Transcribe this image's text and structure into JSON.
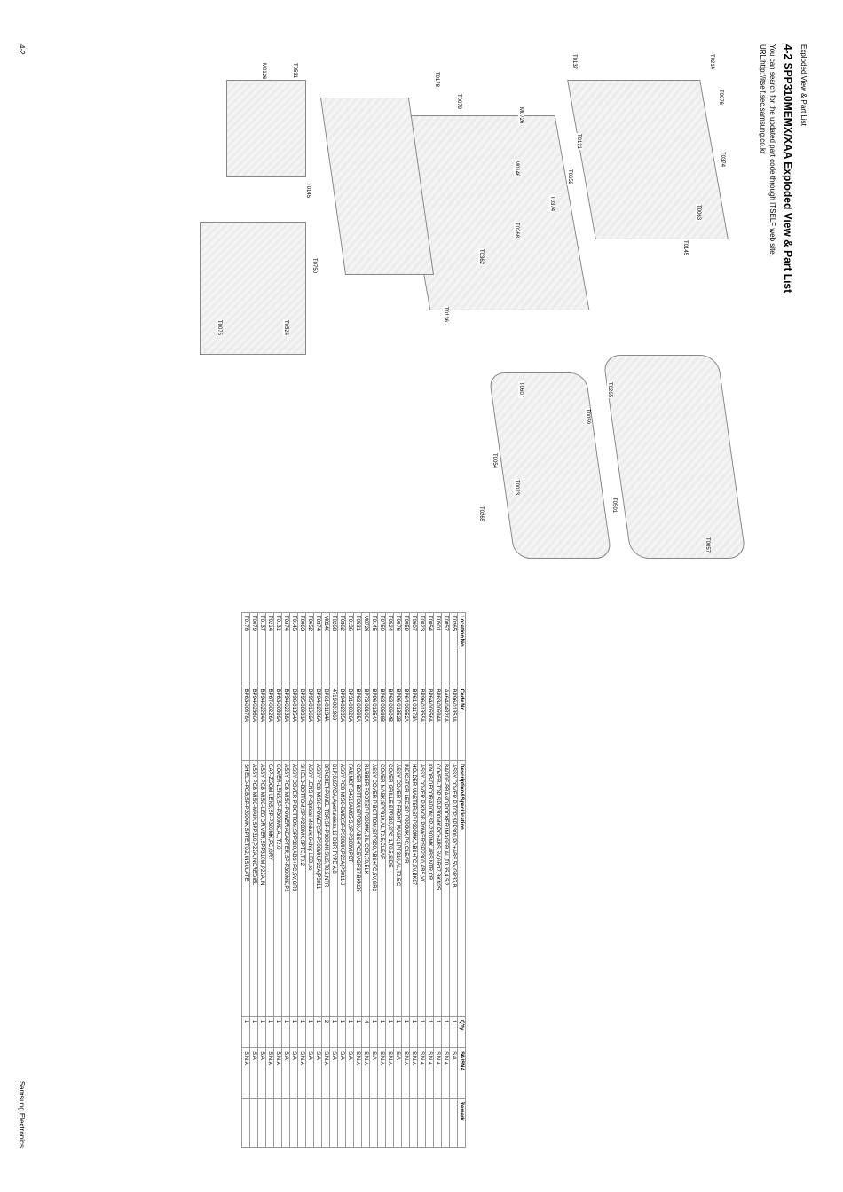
{
  "header_small": "Exploded View & Part List",
  "title": "4-2 SPP310MEMX/XAA Exploded View & Part List",
  "sub1": "You can search for the updated part code through ITSELF web site.",
  "sub2": "URL:http://itself.sec.samsung.co.kr",
  "footer_left": "4-2",
  "footer_right": "Samsung Electronics",
  "callouts": {
    "c1": "T0214",
    "c2": "T0076",
    "c3": "T0374",
    "c4": "T0063",
    "c5": "T0145",
    "c6": "T0531",
    "c7": "M0126",
    "c8": "T0145",
    "c9": "T0750",
    "c10": "T0524",
    "c11": "T0076",
    "c12": "T0137",
    "c13": "T0131",
    "c14": "T0652",
    "c15": "T0374",
    "c16": "T0268",
    "c17": "T0362",
    "c18": "T0136",
    "c19": "M0146",
    "c20": "T0079",
    "c21": "T0178",
    "c22": "T0265",
    "c23": "T0607",
    "c24": "T0059",
    "c25": "T0057",
    "c26": "T0054",
    "c27": "T0023",
    "c28": "T0501",
    "c29": "T0265",
    "c30": "M0726"
  },
  "table": {
    "headers": [
      "Location No.",
      "Code No.",
      "Description&Specification",
      "Q'ty",
      "SA/SNA",
      "Remark"
    ],
    "rows": [
      [
        "T0265",
        "BP96-01351A",
        "ASSY COVER P-TOP;SPP300,PC+ABS,5V,GR37,B",
        "1",
        "S.A",
        ""
      ],
      [
        "T0057",
        "AA64-04320A",
        "BADGE-BRAND;POCKER IMAGER,AL,T0.65,4.5,2",
        "1",
        "S.N.A",
        ""
      ],
      [
        "T0501",
        "BP63-00594A",
        "COVER-TOP;SP-P300MK,PC+ABS,5V,GR37,BKN25",
        "1",
        "S.N.A",
        ""
      ],
      [
        "T0054",
        "BP64-00556A",
        "KNOB-DECORATION;SP-P300MK,ABS,NTR,CR",
        "1",
        "S.N.A",
        ""
      ],
      [
        "T0023",
        "BP96-01355A",
        "ASSY COVER P-KNOB POWER;SPP300,ABS,V0",
        "1",
        "S.N.A",
        ""
      ],
      [
        "T0607",
        "BP61-01173A",
        "HOLDER-MASTER;SP-P300MK,ABS+PC,5V,BK07",
        "1",
        "S.N.A",
        ""
      ],
      [
        "T0059",
        "BP64-00552A",
        "INDICATOR-LED;SP-P200MK,PC,CLEAR",
        "1",
        "S.N.A",
        ""
      ],
      [
        "T0076",
        "BP96-01352B",
        "ASSY COVER P-FRONT MASK;SPP310,AL,T2.5,C",
        "1",
        "S.A",
        ""
      ],
      [
        "T0524",
        "BP63-00604B",
        "COVER-GRILLE;SPP310,SPC-1,T0.5,SIDE",
        "1",
        "S.N.A",
        ""
      ],
      [
        "T0750",
        "BP63-00598B",
        "COVER-MASK;SPP310,AL,T2.5,CLEAR",
        "1",
        "S.N.A",
        ""
      ],
      [
        "T0145",
        "BP96-01354A",
        "ASSY COVER P-BOTTOM;SPP300,ABS+PC,5V,GR3",
        "1",
        "S.A",
        ""
      ],
      [
        "M0726",
        "BP73-00100A",
        "RUBBER-FOOT;SP-P200MK,SILICON,70,BLK",
        "4",
        "S.N.A",
        ""
      ],
      [
        "T0531",
        "BP63-00595A",
        "COVER-BOTTOM;SPP300,ABS+PC,5V,GR37,BKN25",
        "1",
        "S.N.A",
        ""
      ],
      [
        "T0136",
        "BP31-00020A",
        "FAN;MCF-S4510AM05-S,SP-P300M,PBT",
        "1",
        "S.A",
        ""
      ],
      [
        "T0362",
        "BP94-02235A",
        "ASSY PCB MISC-DMD;SP-P300MK,P22A(P3011-J",
        "1",
        "S.A",
        ""
      ],
      [
        "T0268",
        "4719-001963",
        "DLP;0.65VGA,Apertureless,12 DDR TYPE A,8",
        "1",
        "S.A",
        ""
      ],
      [
        "M0146",
        "BP61-01134A",
        "BRACKET-PANEL TOP;SP-P300MK,SUS,T0.2,NTR",
        "2",
        "S.N.A",
        ""
      ],
      [
        "T0374",
        "BP94-02236A",
        "ASSY PCB MISC-POWER;SP-P300MK,P22A(P3011",
        "1",
        "S.A",
        ""
      ],
      [
        "T0652",
        "BP95-01662A",
        "ASSY LENS P-Optical Module;6-chip LED,so",
        "1",
        "S.A",
        ""
      ],
      [
        "T0063",
        "BP95-00931A",
        "SHIELD-BOTTOM;SP-P200MK,SPTE,T0.2",
        "1",
        "S.N.A",
        ""
      ],
      [
        "T0145",
        "BP96-01354A",
        "ASSY COVER P-BOTTOM;SPP300,ABS+PC,5V,GR3",
        "1",
        "S.A",
        ""
      ],
      [
        "T0374",
        "BP94-02238A",
        "ASSY PCB MISC-POWER ADAPTER;SP-P300MK,P2",
        "1",
        "S.A",
        ""
      ],
      [
        "T0131",
        "BP63-00599A",
        "COVER-LENS;SP-P300MK,AL,T2.0",
        "1",
        "S.N.A",
        ""
      ],
      [
        "T0214",
        "BP67-00226A",
        "CAP-ZOOM LENS;SP-P300MK,PC,GRY",
        "1",
        "S.N.A",
        ""
      ],
      [
        "T0137",
        "BP94-02294A",
        "ASSY PCB MISC-LED DRIVER;SPP310M,P22A,IN",
        "1",
        "S.A",
        ""
      ],
      [
        "T0079",
        "BP94-02360A",
        "ASSY PCB MISC-MAIN;SPP310,P22A,INCREDIBL",
        "1",
        "S.A",
        ""
      ],
      [
        "T0178",
        "BP63-00678A",
        "SHIELD-PCB;SP-P300MK,SPTE,T0.2,INSULATE",
        "1",
        "S.N.A",
        ""
      ]
    ]
  }
}
